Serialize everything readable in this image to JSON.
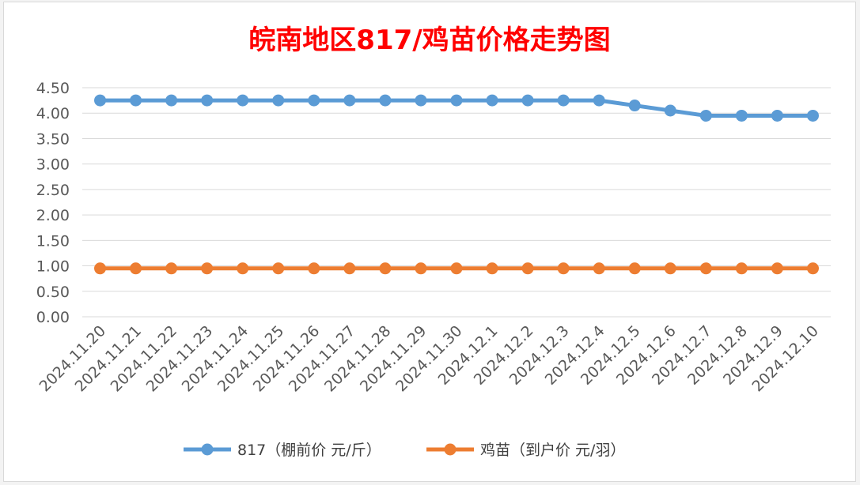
{
  "chart_data": {
    "type": "line",
    "title": "皖南地区817/鸡苗价格走势图",
    "xlabel": "",
    "ylabel": "",
    "ylim": [
      0,
      4.5
    ],
    "yticks": [
      "0.00",
      "0.50",
      "1.00",
      "1.50",
      "2.00",
      "2.50",
      "3.00",
      "3.50",
      "4.00",
      "4.50"
    ],
    "grid": true,
    "legend_position": "bottom",
    "categories": [
      "2024.11.20",
      "2024.11.21",
      "2024.11.22",
      "2024.11.23",
      "2024.11.24",
      "2024.11.25",
      "2024.11.26",
      "2024.11.27",
      "2024.11.28",
      "2024.11.29",
      "2024.11.30",
      "2024.12.1",
      "2024.12.2",
      "2024.12.3",
      "2024.12.4",
      "2024.12.5",
      "2024.12.6",
      "2024.12.7",
      "2024.12.8",
      "2024.12.9",
      "2024.12.10"
    ],
    "series": [
      {
        "name": "817（棚前价 元/斤）",
        "color": "#5b9bd5",
        "values": [
          4.25,
          4.25,
          4.25,
          4.25,
          4.25,
          4.25,
          4.25,
          4.25,
          4.25,
          4.25,
          4.25,
          4.25,
          4.25,
          4.25,
          4.25,
          4.15,
          4.05,
          3.95,
          3.95,
          3.95,
          3.95
        ]
      },
      {
        "name": "鸡苗（到户价 元/羽）",
        "color": "#ed7d31",
        "values": [
          0.95,
          0.95,
          0.95,
          0.95,
          0.95,
          0.95,
          0.95,
          0.95,
          0.95,
          0.95,
          0.95,
          0.95,
          0.95,
          0.95,
          0.95,
          0.95,
          0.95,
          0.95,
          0.95,
          0.95,
          0.95
        ]
      }
    ]
  }
}
